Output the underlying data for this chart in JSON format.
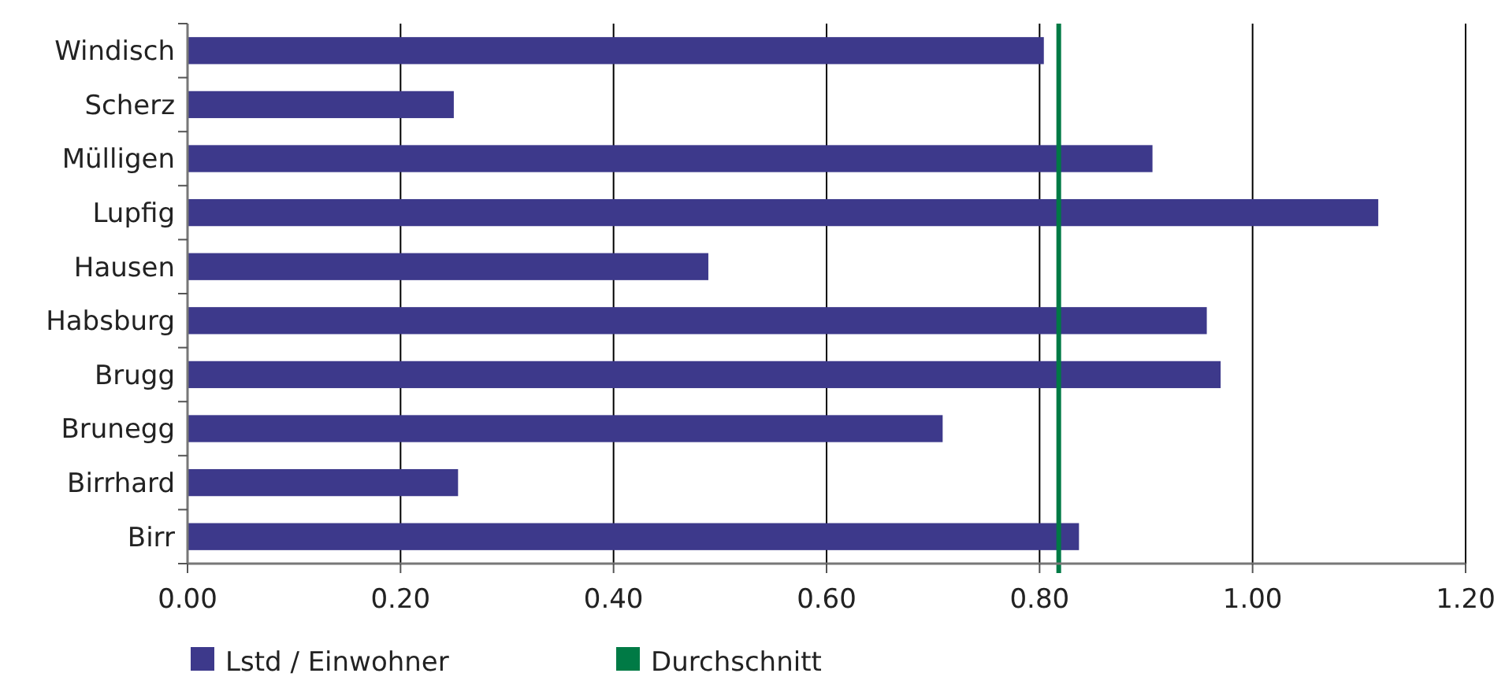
{
  "chart_data": {
    "type": "bar",
    "orientation": "horizontal",
    "categories": [
      "Windisch",
      "Scherz",
      "Mülligen",
      "Lupfig",
      "Hausen",
      "Habsburg",
      "Brugg",
      "Brunegg",
      "Birrhard",
      "Birr"
    ],
    "series": [
      {
        "name": "Lstd / Einwohner",
        "color": "#3d398b",
        "values": [
          0.804,
          0.25,
          0.906,
          1.118,
          0.489,
          0.957,
          0.97,
          0.709,
          0.254,
          0.837
        ]
      }
    ],
    "xlim": [
      0,
      1.2
    ],
    "xticks": [
      {
        "value": 0,
        "label": "0.00"
      },
      {
        "value": 0.2,
        "label": "0.20"
      },
      {
        "value": 0.4,
        "label": "0.40"
      },
      {
        "value": 0.6,
        "label": "0.60"
      },
      {
        "value": 0.8,
        "label": "0.80"
      },
      {
        "value": 1,
        "label": "1.00"
      },
      {
        "value": 1.2,
        "label": "1.20"
      }
    ],
    "grid": "x",
    "legend": "bottom",
    "ref_lines": [
      {
        "axis": "x",
        "value": 0.818,
        "label": "Durchschnitt",
        "color": "#007a45"
      }
    ]
  }
}
